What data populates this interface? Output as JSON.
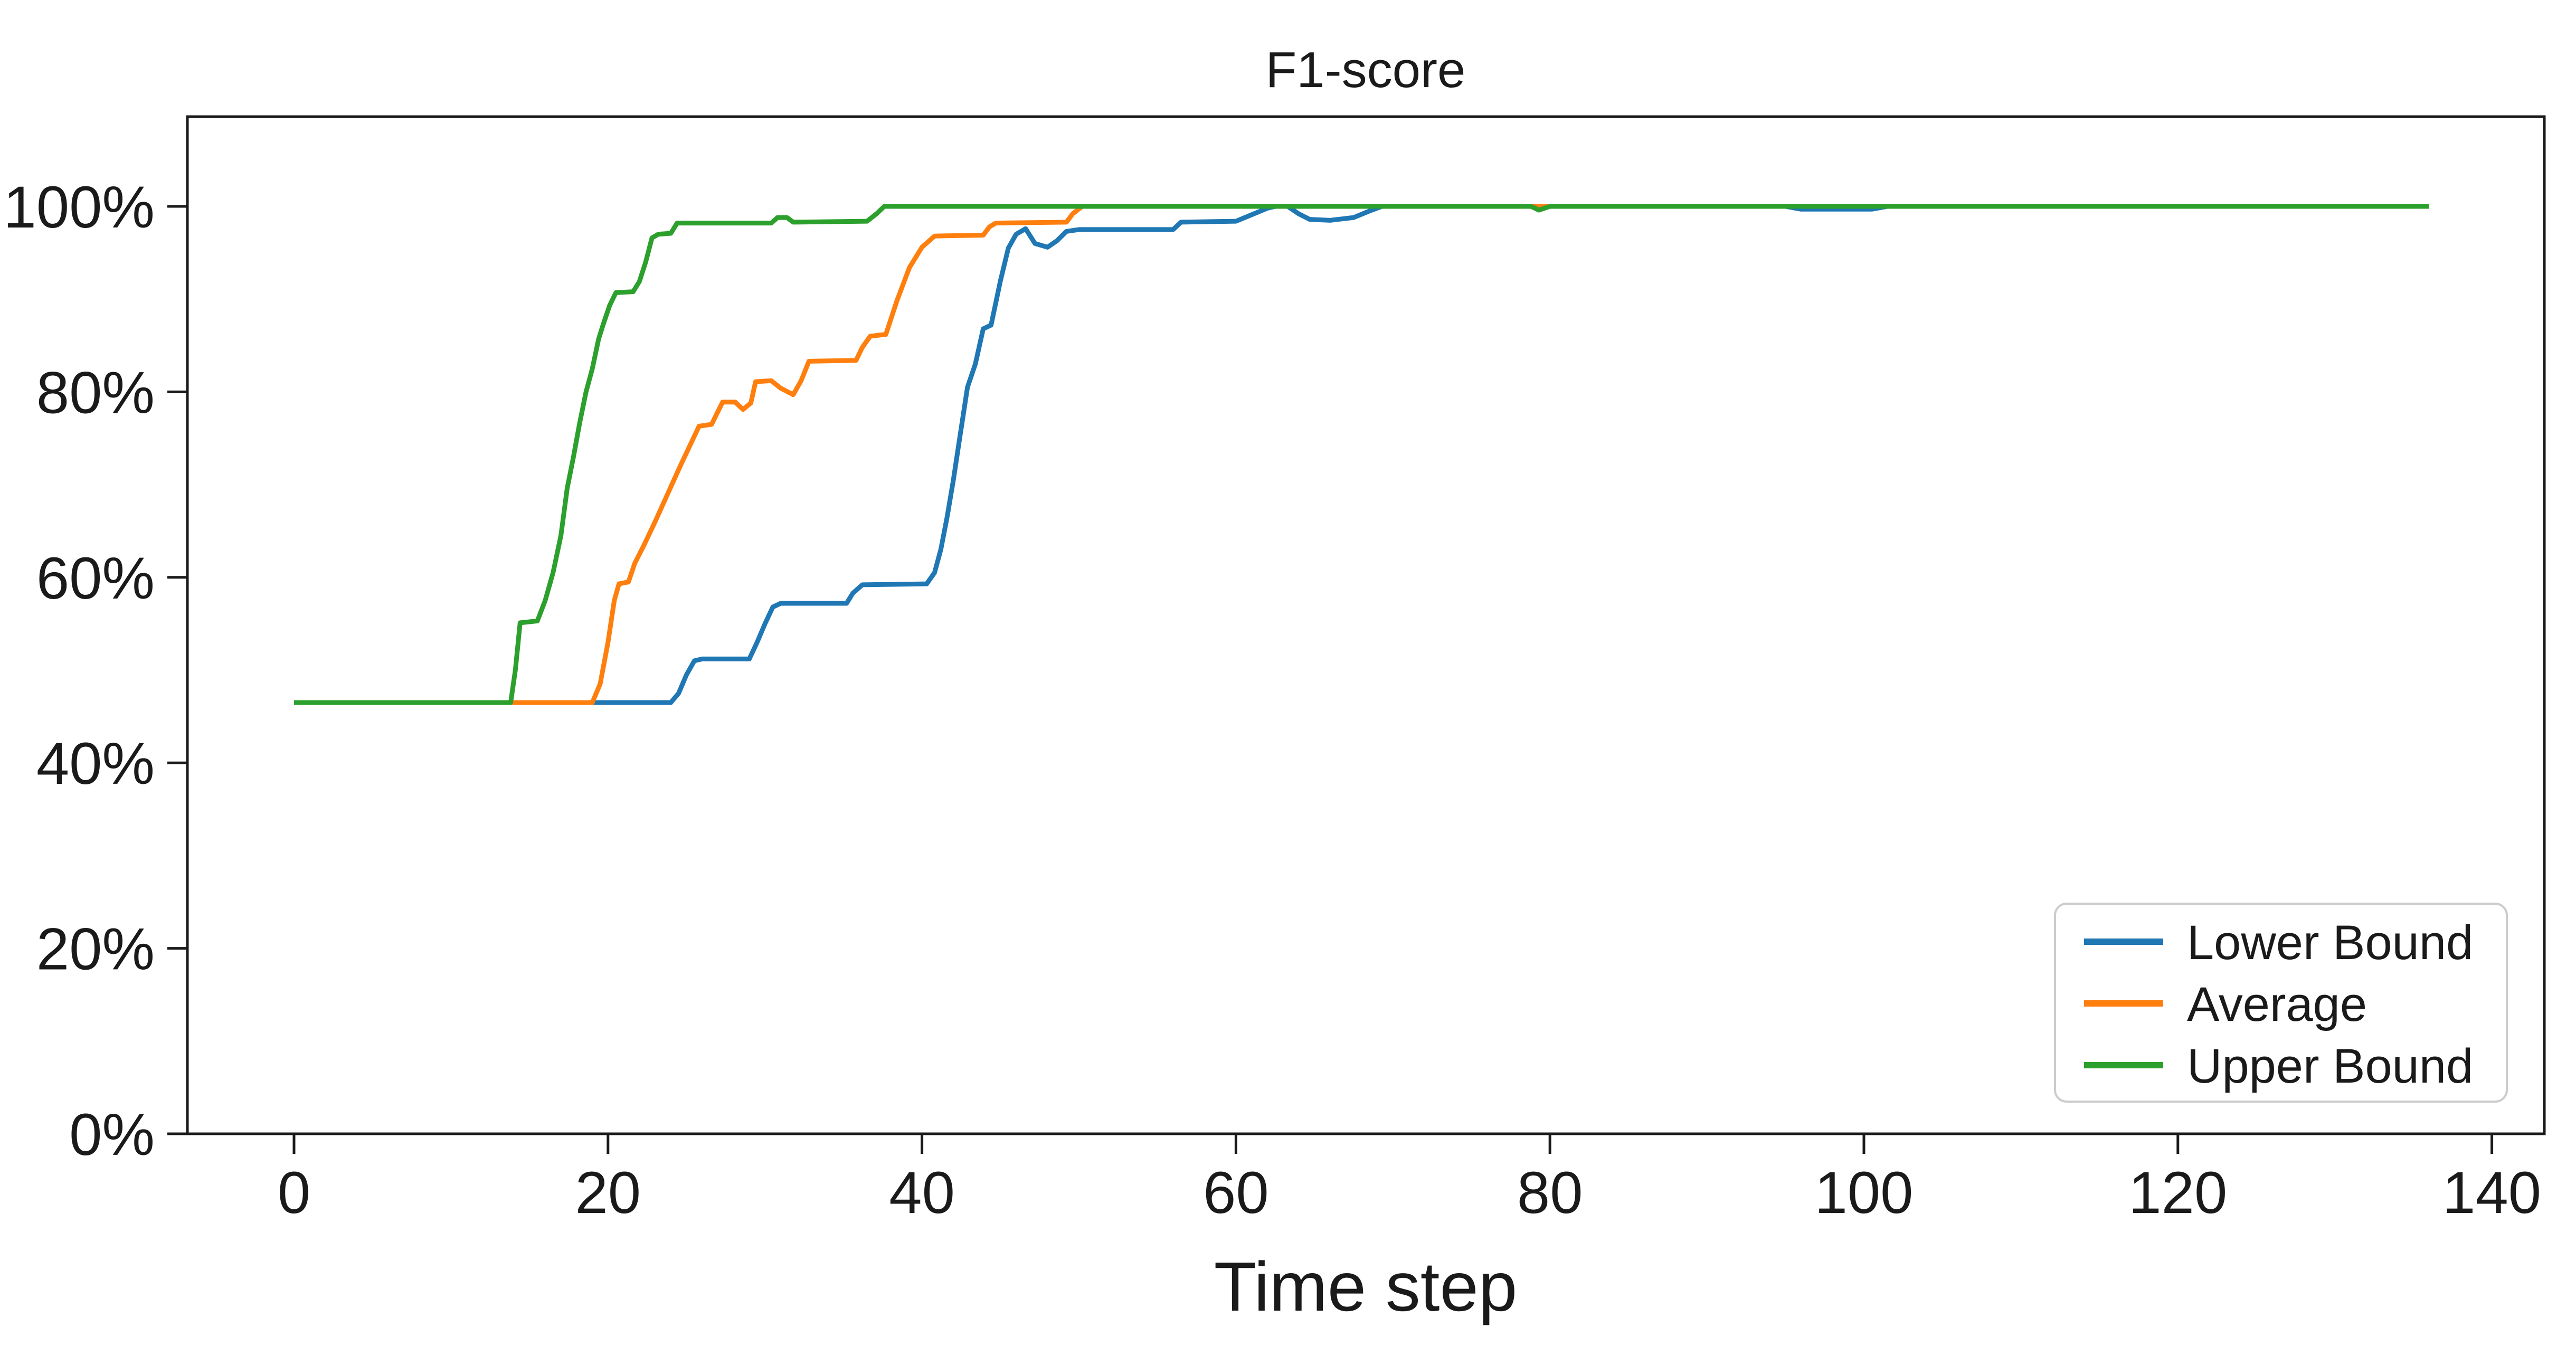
{
  "chart_data": {
    "type": "line",
    "title": "F1-score",
    "xlabel": "Time step",
    "ylabel": "",
    "grid": false,
    "background": "#ffffff",
    "axis_color": "#1a1a1a",
    "xlim": [
      -6.8,
      143.5
    ],
    "ylim": [
      0,
      109.7
    ],
    "x_ticks": [
      0,
      20,
      40,
      60,
      80,
      100,
      120,
      140
    ],
    "y_ticks": [
      0,
      20,
      40,
      60,
      80,
      100
    ],
    "y_tick_suffix": "%",
    "legend_position": "lower right",
    "series": [
      {
        "name": "Lower Bound",
        "color": "#1f77b4",
        "points": [
          [
            0,
            46.5
          ],
          [
            24,
            46.5
          ],
          [
            24.5,
            47.5
          ],
          [
            25,
            49.5
          ],
          [
            25.5,
            51
          ],
          [
            26,
            51.2
          ],
          [
            29,
            51.2
          ],
          [
            29.5,
            53
          ],
          [
            30,
            55
          ],
          [
            30.5,
            56.8
          ],
          [
            31,
            57.2
          ],
          [
            35.2,
            57.2
          ],
          [
            35.6,
            58.3
          ],
          [
            36.2,
            59.2
          ],
          [
            40.3,
            59.3
          ],
          [
            40.8,
            60.5
          ],
          [
            41.2,
            63
          ],
          [
            41.6,
            66.5
          ],
          [
            42,
            70.5
          ],
          [
            42.4,
            75
          ],
          [
            42.9,
            80.5
          ],
          [
            43.4,
            83
          ],
          [
            43.9,
            86.8
          ],
          [
            44.4,
            87.2
          ],
          [
            45,
            92
          ],
          [
            45.5,
            95.5
          ],
          [
            46,
            97
          ],
          [
            46.6,
            97.6
          ],
          [
            47.2,
            96
          ],
          [
            48,
            95.6
          ],
          [
            48.6,
            96.3
          ],
          [
            49.2,
            97.3
          ],
          [
            50,
            97.5
          ],
          [
            56,
            97.5
          ],
          [
            56.5,
            98.3
          ],
          [
            60,
            98.4
          ],
          [
            61,
            99.1
          ],
          [
            62,
            99.8
          ],
          [
            62.5,
            100
          ],
          [
            63.3,
            100
          ],
          [
            64,
            99.2
          ],
          [
            64.7,
            98.6
          ],
          [
            66,
            98.5
          ],
          [
            67.5,
            98.8
          ],
          [
            68.5,
            99.5
          ],
          [
            69.3,
            100
          ],
          [
            95,
            100
          ],
          [
            96,
            99.7
          ],
          [
            100.5,
            99.7
          ],
          [
            101.5,
            100
          ],
          [
            136,
            100
          ]
        ]
      },
      {
        "name": "Average",
        "color": "#ff7f0e",
        "points": [
          [
            0,
            46.5
          ],
          [
            19,
            46.5
          ],
          [
            19.5,
            48.5
          ],
          [
            20,
            53
          ],
          [
            20.4,
            57.5
          ],
          [
            20.7,
            59.3
          ],
          [
            21.3,
            59.5
          ],
          [
            21.7,
            61.5
          ],
          [
            22.3,
            63.5
          ],
          [
            23,
            66
          ],
          [
            23.8,
            69
          ],
          [
            24.6,
            72
          ],
          [
            25.3,
            74.5
          ],
          [
            25.8,
            76.3
          ],
          [
            26.6,
            76.5
          ],
          [
            27.3,
            78.9
          ],
          [
            28.1,
            78.9
          ],
          [
            28.6,
            78.1
          ],
          [
            29.1,
            78.8
          ],
          [
            29.4,
            81.1
          ],
          [
            30.4,
            81.2
          ],
          [
            31,
            80.4
          ],
          [
            31.8,
            79.7
          ],
          [
            32.3,
            81.2
          ],
          [
            32.8,
            83.3
          ],
          [
            35.8,
            83.4
          ],
          [
            36.2,
            84.8
          ],
          [
            36.7,
            86
          ],
          [
            37.7,
            86.2
          ],
          [
            38.4,
            89.8
          ],
          [
            39.2,
            93.4
          ],
          [
            40,
            95.6
          ],
          [
            40.8,
            96.8
          ],
          [
            43.9,
            96.9
          ],
          [
            44.3,
            97.8
          ],
          [
            44.7,
            98.2
          ],
          [
            49.2,
            98.3
          ],
          [
            49.6,
            99.2
          ],
          [
            50.2,
            100
          ],
          [
            136,
            100
          ]
        ]
      },
      {
        "name": "Upper Bound",
        "color": "#2ca02c",
        "points": [
          [
            0,
            46.5
          ],
          [
            13.8,
            46.5
          ],
          [
            14.1,
            50
          ],
          [
            14.4,
            55.1
          ],
          [
            15.5,
            55.3
          ],
          [
            16,
            57.5
          ],
          [
            16.5,
            60.5
          ],
          [
            17,
            64.5
          ],
          [
            17.4,
            69.6
          ],
          [
            17.8,
            73
          ],
          [
            18.2,
            76.7
          ],
          [
            18.6,
            80
          ],
          [
            19,
            82.5
          ],
          [
            19.4,
            85.7
          ],
          [
            19.7,
            87.3
          ],
          [
            20.1,
            89.3
          ],
          [
            20.5,
            90.7
          ],
          [
            21.6,
            90.8
          ],
          [
            22,
            91.9
          ],
          [
            22.4,
            94
          ],
          [
            22.8,
            96.6
          ],
          [
            23.2,
            97
          ],
          [
            24,
            97.1
          ],
          [
            24.4,
            98.2
          ],
          [
            30.4,
            98.2
          ],
          [
            30.8,
            98.8
          ],
          [
            31.4,
            98.8
          ],
          [
            31.8,
            98.3
          ],
          [
            36.5,
            98.4
          ],
          [
            37.1,
            99.2
          ],
          [
            37.6,
            100
          ],
          [
            78.8,
            100
          ],
          [
            79.3,
            99.6
          ],
          [
            80,
            100
          ],
          [
            136,
            100
          ]
        ]
      }
    ]
  }
}
